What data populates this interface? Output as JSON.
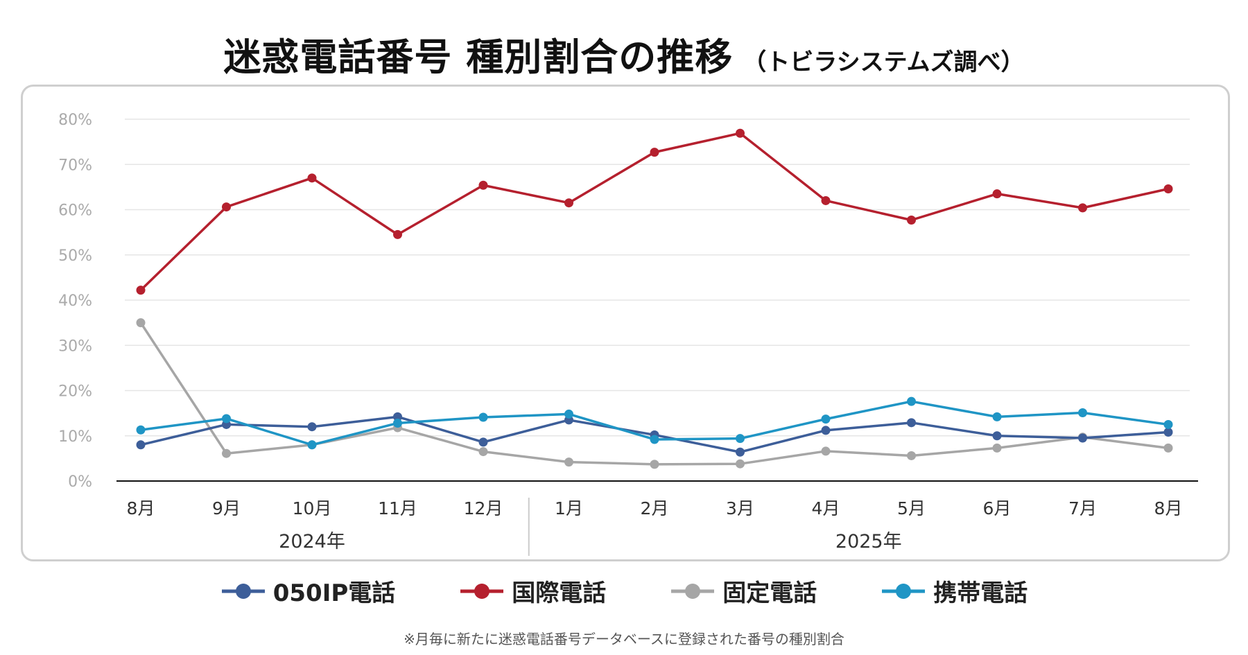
{
  "title": {
    "main": "迷惑電話番号 種別割合の推移",
    "sub": "（トビラシステムズ調べ）"
  },
  "footnote": "※月毎に新たに迷惑電話番号データベースに登録された番号の種別割合",
  "chart_data": {
    "type": "line",
    "categories": [
      "8月",
      "9月",
      "10月",
      "11月",
      "12月",
      "1月",
      "2月",
      "3月",
      "4月",
      "5月",
      "6月",
      "7月",
      "8月"
    ],
    "year_groups": [
      {
        "label": "2024年",
        "start": 0,
        "end": 4
      },
      {
        "label": "2025年",
        "start": 5,
        "end": 12
      }
    ],
    "ylim": [
      0,
      80
    ],
    "yticks": [
      "0%",
      "10%",
      "20%",
      "30%",
      "40%",
      "50%",
      "60%",
      "70%",
      "80%"
    ],
    "grid": true,
    "legend_position": "bottom",
    "series": [
      {
        "name": "050IP電話",
        "color": "#3d5e99",
        "values": [
          8,
          12.5,
          12,
          14.2,
          8.6,
          13.5,
          10.2,
          6.4,
          11.2,
          12.9,
          10,
          9.5,
          10.8
        ]
      },
      {
        "name": "国際電話",
        "color": "#b5202e",
        "values": [
          42.2,
          60.6,
          67,
          54.5,
          65.4,
          61.5,
          72.7,
          76.9,
          62,
          57.7,
          63.5,
          60.4,
          64.6
        ]
      },
      {
        "name": "固定電話",
        "color": "#a6a6a6",
        "values": [
          35,
          6.1,
          8,
          11.8,
          6.5,
          4.2,
          3.7,
          3.8,
          6.6,
          5.6,
          7.3,
          9.7,
          7.3
        ]
      },
      {
        "name": "携帯電話",
        "color": "#1f95c5",
        "values": [
          11.3,
          13.8,
          8,
          12.8,
          14.1,
          14.8,
          9.2,
          9.4,
          13.7,
          17.6,
          14.2,
          15.1,
          12.5
        ]
      }
    ]
  }
}
